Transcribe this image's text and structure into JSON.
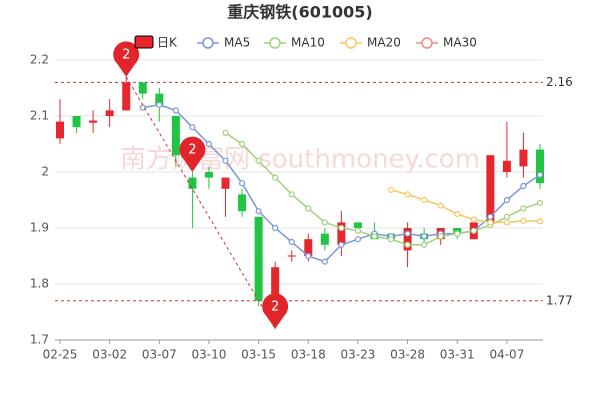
{
  "chart_data": {
    "type": "candlestick",
    "title": "重庆钢铁(601005)",
    "watermark": "南方财富网 southmoney.com",
    "categories": [
      "02-25",
      null,
      null,
      "03-02",
      null,
      null,
      "03-07",
      null,
      null,
      "03-10",
      null,
      null,
      "03-15",
      null,
      null,
      "03-18",
      null,
      null,
      "03-23",
      null,
      null,
      "03-28",
      null,
      null,
      "03-31",
      null,
      null,
      "04-07",
      null,
      null
    ],
    "candles": {
      "name": "日K",
      "up_color": "#e8262d",
      "down_color": "#22c443",
      "open": [
        2.06,
        2.1,
        2.088,
        2.1,
        2.11,
        2.16,
        2.14,
        2.1,
        1.99,
        2.0,
        1.97,
        1.96,
        1.92,
        1.77,
        1.849,
        1.85,
        1.89,
        1.87,
        1.91,
        1.89,
        1.89,
        1.86,
        1.89,
        1.88,
        1.9,
        1.88,
        1.91,
        2.0,
        2.01,
        2.04
      ],
      "high": [
        2.13,
        2.1,
        2.11,
        2.13,
        2.17,
        2.16,
        2.15,
        2.1,
        2.0,
        2.01,
        1.99,
        1.97,
        1.92,
        1.84,
        1.86,
        1.89,
        1.9,
        1.93,
        1.91,
        1.91,
        1.89,
        1.91,
        1.9,
        1.9,
        1.9,
        1.91,
        2.03,
        2.09,
        2.07,
        2.05
      ],
      "low": [
        2.05,
        2.07,
        2.07,
        2.08,
        2.11,
        2.13,
        2.09,
        2.01,
        1.9,
        1.97,
        1.92,
        1.92,
        1.76,
        1.72,
        1.84,
        1.84,
        1.86,
        1.85,
        1.89,
        1.88,
        1.88,
        1.83,
        1.87,
        1.87,
        1.88,
        1.88,
        1.9,
        1.99,
        1.99,
        1.97
      ],
      "close": [
        2.09,
        2.08,
        2.092,
        2.11,
        2.16,
        2.14,
        2.12,
        2.03,
        1.97,
        1.99,
        1.99,
        1.93,
        1.77,
        1.83,
        1.851,
        1.88,
        1.87,
        1.91,
        1.9,
        1.88,
        1.88,
        1.9,
        1.88,
        1.9,
        1.89,
        1.91,
        2.03,
        2.02,
        2.04,
        1.98
      ]
    },
    "series": [
      {
        "name": "MA5",
        "color": "#7b97d6",
        "values": [
          null,
          null,
          null,
          null,
          null,
          2.115,
          2.12,
          2.11,
          2.08,
          2.05,
          2.02,
          1.98,
          1.93,
          1.9,
          1.875,
          1.85,
          1.84,
          1.87,
          1.88,
          1.89,
          1.885,
          1.89,
          1.885,
          1.89,
          1.89,
          1.895,
          1.92,
          1.95,
          1.975,
          1.995
        ]
      },
      {
        "name": "MA10",
        "color": "#9fd27f",
        "values": [
          null,
          null,
          null,
          null,
          null,
          null,
          null,
          null,
          null,
          null,
          2.07,
          2.05,
          2.02,
          1.99,
          1.96,
          1.935,
          1.91,
          1.9,
          1.895,
          1.885,
          1.88,
          1.87,
          1.87,
          1.885,
          1.89,
          1.895,
          1.905,
          1.92,
          1.935,
          1.945
        ]
      },
      {
        "name": "MA20",
        "color": "#f6c85f",
        "values": [
          null,
          null,
          null,
          null,
          null,
          null,
          null,
          null,
          null,
          null,
          null,
          null,
          null,
          null,
          null,
          null,
          null,
          null,
          null,
          null,
          1.968,
          1.96,
          1.95,
          1.94,
          1.925,
          1.915,
          1.91,
          1.91,
          1.913,
          1.912
        ]
      },
      {
        "name": "MA30",
        "color": "#f08a8a",
        "values": [
          null,
          null,
          null,
          null,
          null,
          null,
          null,
          null,
          null,
          null,
          null,
          null,
          null,
          null,
          null,
          null,
          null,
          null,
          null,
          null,
          null,
          null,
          null,
          null,
          null,
          null,
          null,
          null,
          null,
          null
        ]
      }
    ],
    "reference_lines": [
      2.16,
      1.77
    ],
    "pins": [
      {
        "label": "2",
        "value": 2.17
      },
      {
        "label": "2",
        "value": 2.0
      },
      {
        "label": "2",
        "value": 1.72
      }
    ],
    "ylim": [
      1.7,
      2.2
    ],
    "yticks": [
      1.7,
      1.8,
      1.9,
      2,
      2.1,
      2.2
    ],
    "grid": true
  }
}
